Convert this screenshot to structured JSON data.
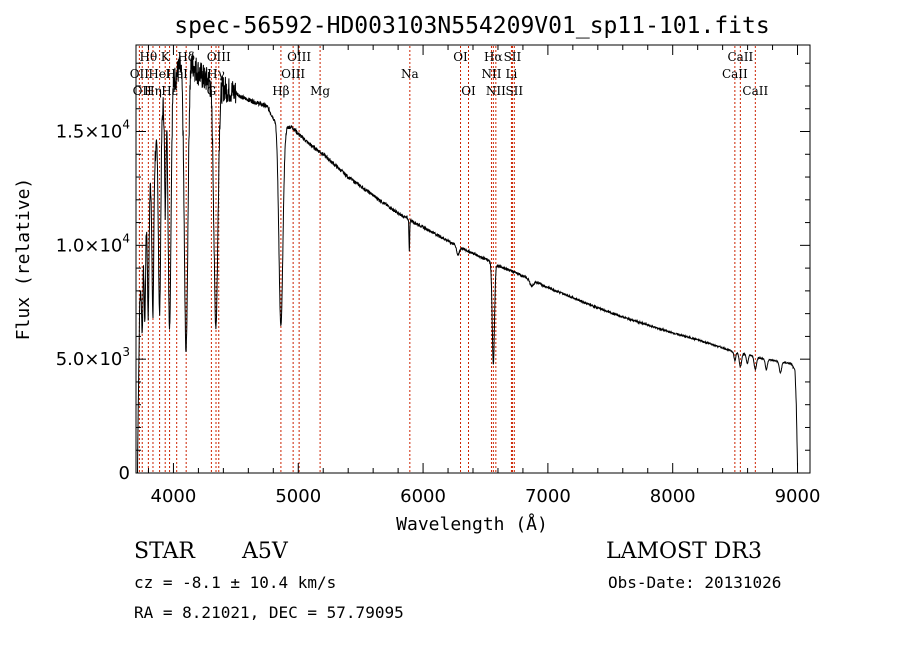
{
  "chart_data": {
    "type": "line",
    "title": "spec-56592-HD003103N554209V01_sp11-101.fits",
    "xlabel": "Wavelength (Å)",
    "ylabel": "Flux (relative)",
    "xlim": [
      3700,
      9100
    ],
    "ylim": [
      0,
      18800
    ],
    "x_ticks": [
      {
        "value": 4000,
        "label": "4000"
      },
      {
        "value": 5000,
        "label": "5000"
      },
      {
        "value": 6000,
        "label": "6000"
      },
      {
        "value": 7000,
        "label": "7000"
      },
      {
        "value": 8000,
        "label": "8000"
      },
      {
        "value": 9000,
        "label": "9000"
      }
    ],
    "y_ticks": [
      {
        "value": 0,
        "label": "0",
        "exp": ""
      },
      {
        "value": 5000,
        "label": "5.0×10",
        "exp": "3"
      },
      {
        "value": 10000,
        "label": "1.0×10",
        "exp": "4"
      },
      {
        "value": 15000,
        "label": "1.5×10",
        "exp": "4"
      }
    ],
    "line_markers": [
      {
        "wl": 3727,
        "label": "OII",
        "row": 2
      },
      {
        "wl": 3750,
        "label": "OII",
        "row": 3
      },
      {
        "wl": 3799,
        "label": "Hθ",
        "row": 1
      },
      {
        "wl": 3836,
        "label": "Hη",
        "row": 3
      },
      {
        "wl": 3889,
        "label": "HeI",
        "row": 2
      },
      {
        "wl": 3934,
        "label": "K",
        "row": 1
      },
      {
        "wl": 3969,
        "label": "Hε",
        "row": 3
      },
      {
        "wl": 4026,
        "label": "HeI",
        "row": 2
      },
      {
        "wl": 4102,
        "label": "Hδ",
        "row": 1
      },
      {
        "wl": 4304,
        "label": "G",
        "row": 3
      },
      {
        "wl": 4341,
        "label": "Hγ",
        "row": 2
      },
      {
        "wl": 4363,
        "label": "OIII",
        "row": 1
      },
      {
        "wl": 4861,
        "label": "Hβ",
        "row": 3
      },
      {
        "wl": 4959,
        "label": "OIII",
        "row": 2
      },
      {
        "wl": 5007,
        "label": "OIII",
        "row": 1
      },
      {
        "wl": 5175,
        "label": "Mg",
        "row": 3
      },
      {
        "wl": 5894,
        "label": "Na",
        "row": 2
      },
      {
        "wl": 6300,
        "label": "OI",
        "row": 1
      },
      {
        "wl": 6364,
        "label": "OI",
        "row": 3
      },
      {
        "wl": 6548,
        "label": "NII",
        "row": 2
      },
      {
        "wl": 6563,
        "label": "Hα",
        "row": 1
      },
      {
        "wl": 6583,
        "label": "NII",
        "row": 3
      },
      {
        "wl": 6708,
        "label": "Li",
        "row": 2
      },
      {
        "wl": 6716,
        "label": "SII",
        "row": 1
      },
      {
        "wl": 6731,
        "label": "SII",
        "row": 3
      },
      {
        "wl": 8498,
        "label": "CaII",
        "row": 2
      },
      {
        "wl": 8542,
        "label": "CaII",
        "row": 1
      },
      {
        "wl": 8662,
        "label": "CaII",
        "row": 3
      }
    ],
    "continuum": [
      [
        3700,
        0
      ],
      [
        3712,
        0
      ],
      [
        3717,
        2500
      ],
      [
        3730,
        7500
      ],
      [
        3760,
        9500
      ],
      [
        3790,
        11500
      ],
      [
        3830,
        13500
      ],
      [
        3870,
        14500
      ],
      [
        3900,
        16000
      ],
      [
        3940,
        16300
      ],
      [
        4000,
        17200
      ],
      [
        4050,
        17800
      ],
      [
        4100,
        17800
      ],
      [
        4150,
        18000
      ],
      [
        4200,
        17600
      ],
      [
        4250,
        17300
      ],
      [
        4300,
        17200
      ],
      [
        4350,
        17000
      ],
      [
        4400,
        16900
      ],
      [
        4450,
        16800
      ],
      [
        4500,
        16700
      ],
      [
        4550,
        16500
      ],
      [
        4600,
        16400
      ],
      [
        4650,
        16300
      ],
      [
        4700,
        16200
      ],
      [
        4750,
        16100
      ],
      [
        4800,
        15600
      ],
      [
        4850,
        15400
      ],
      [
        4900,
        15200
      ],
      [
        4950,
        15200
      ],
      [
        5000,
        14900
      ],
      [
        5100,
        14400
      ],
      [
        5200,
        14000
      ],
      [
        5300,
        13500
      ],
      [
        5400,
        13000
      ],
      [
        5500,
        12600
      ],
      [
        5600,
        12200
      ],
      [
        5700,
        11800
      ],
      [
        5800,
        11400
      ],
      [
        5900,
        11100
      ],
      [
        6000,
        10800
      ],
      [
        6100,
        10500
      ],
      [
        6200,
        10200
      ],
      [
        6300,
        9900
      ],
      [
        6400,
        9650
      ],
      [
        6500,
        9400
      ],
      [
        6600,
        9100
      ],
      [
        6700,
        8900
      ],
      [
        6800,
        8650
      ],
      [
        7000,
        8150
      ],
      [
        7200,
        7700
      ],
      [
        7400,
        7250
      ],
      [
        7600,
        6850
      ],
      [
        7800,
        6500
      ],
      [
        8000,
        6150
      ],
      [
        8200,
        5850
      ],
      [
        8400,
        5500
      ],
      [
        8500,
        5300
      ],
      [
        8600,
        5200
      ],
      [
        8700,
        5050
      ],
      [
        8800,
        4950
      ],
      [
        8900,
        4850
      ],
      [
        8950,
        4800
      ],
      [
        8980,
        4500
      ],
      [
        8990,
        3000
      ],
      [
        9000,
        300
      ]
    ],
    "absorption_lines": [
      {
        "wl": 3750,
        "depth": 0.3,
        "width": 5
      },
      {
        "wl": 3771,
        "depth": 0.35,
        "width": 5
      },
      {
        "wl": 3798,
        "depth": 0.42,
        "width": 6
      },
      {
        "wl": 3835,
        "depth": 0.5,
        "width": 7
      },
      {
        "wl": 3889,
        "depth": 0.55,
        "width": 9
      },
      {
        "wl": 3934,
        "depth": 0.3,
        "width": 5
      },
      {
        "wl": 3969,
        "depth": 0.62,
        "width": 11
      },
      {
        "wl": 4101,
        "depth": 0.7,
        "width": 14
      },
      {
        "wl": 4340,
        "depth": 0.62,
        "width": 16
      },
      {
        "wl": 4861,
        "depth": 0.58,
        "width": 16
      },
      {
        "wl": 5890,
        "depth": 0.12,
        "width": 3
      },
      {
        "wl": 6280,
        "depth": 0.04,
        "width": 10
      },
      {
        "wl": 6563,
        "depth": 0.48,
        "width": 9
      },
      {
        "wl": 6870,
        "depth": 0.03,
        "width": 15
      },
      {
        "wl": 8498,
        "depth": 0.07,
        "width": 7
      },
      {
        "wl": 8542,
        "depth": 0.11,
        "width": 9
      },
      {
        "wl": 8598,
        "depth": 0.08,
        "width": 7
      },
      {
        "wl": 8662,
        "depth": 0.11,
        "width": 9
      },
      {
        "wl": 8750,
        "depth": 0.09,
        "width": 8
      },
      {
        "wl": 8863,
        "depth": 0.1,
        "width": 9
      }
    ],
    "line_color": "#000000",
    "marker_color": "#cc2200"
  },
  "footer": {
    "object_class": "STAR",
    "subclass": "A5V",
    "survey": "LAMOST DR3",
    "redshift": "cz = -8.1 ± 10.4 km/s",
    "obs_date": "Obs-Date: 20131026",
    "coords": "RA =   8.21021, DEC =  57.79095"
  }
}
